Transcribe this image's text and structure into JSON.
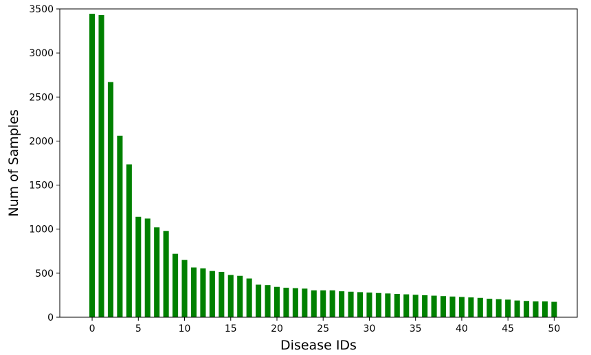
{
  "chart_data": {
    "type": "bar",
    "xlabel": "Disease IDs",
    "ylabel": "Num of Samples",
    "bar_color": "#008000",
    "xlim": [
      -3.5,
      52.5
    ],
    "ylim": [
      0,
      3500
    ],
    "x_ticks": [
      0,
      5,
      10,
      15,
      20,
      25,
      30,
      35,
      40,
      45,
      50
    ],
    "y_ticks": [
      0,
      500,
      1000,
      1500,
      2000,
      2500,
      3000,
      3500
    ],
    "grid": false,
    "legend": "none",
    "x": [
      0,
      1,
      2,
      3,
      4,
      5,
      6,
      7,
      8,
      9,
      10,
      11,
      12,
      13,
      14,
      15,
      16,
      17,
      18,
      19,
      20,
      21,
      22,
      23,
      24,
      25,
      26,
      27,
      28,
      29,
      30,
      31,
      32,
      33,
      34,
      35,
      36,
      37,
      38,
      39,
      40,
      41,
      42,
      43,
      44,
      45,
      46,
      47,
      48,
      49,
      50
    ],
    "values": [
      3445,
      3430,
      2670,
      2060,
      1735,
      1140,
      1120,
      1020,
      980,
      720,
      650,
      565,
      555,
      525,
      515,
      480,
      470,
      440,
      370,
      365,
      345,
      335,
      330,
      325,
      305,
      305,
      305,
      295,
      290,
      285,
      280,
      275,
      270,
      265,
      260,
      255,
      250,
      245,
      240,
      235,
      230,
      225,
      220,
      210,
      205,
      200,
      190,
      185,
      180,
      180,
      175
    ]
  }
}
